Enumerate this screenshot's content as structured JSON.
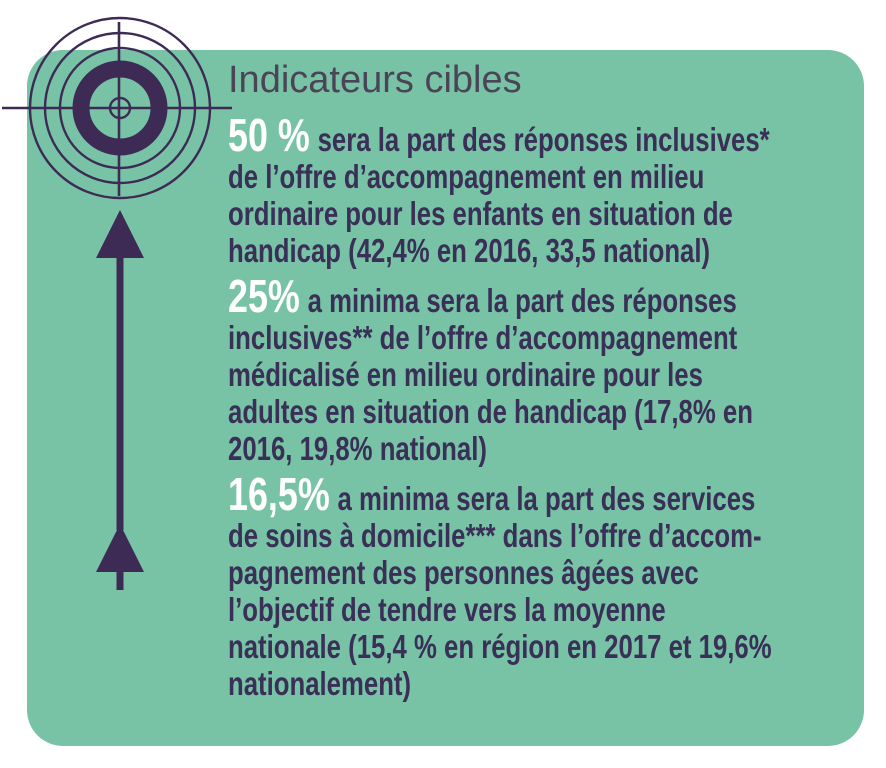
{
  "panel": {
    "title": "Indicateurs cibles",
    "indicators": [
      {
        "value": "50 %",
        "lines": [
          "sera la part des réponses inclusives*",
          "de l’offre d’accompagnement en milieu",
          "ordinaire pour les enfants en situation de",
          "handicap (42,4% en 2016, 33,5 national)"
        ]
      },
      {
        "value": "25%",
        "lines": [
          "a minima sera la part des réponses",
          "inclusives** de l’offre d’accompagnement",
          "médicalisé en milieu ordinaire pour les",
          "adultes en situation de handicap (17,8% en",
          "2016, 19,8% national)"
        ]
      },
      {
        "value": "16,5%",
        "lines": [
          "a minima sera la part des services",
          "de soins à domicile*** dans l’offre d’accom-",
          "pagnement des personnes âgées avec",
          "l’objectif de tendre vers la moyenne",
          "nationale (15,4 % en région en 2017 et 19,6%",
          "nationalement)"
        ]
      }
    ]
  },
  "icons": {
    "target": "target-icon",
    "arrow": "up-arrow-icon"
  },
  "colors": {
    "background": "#ffffff",
    "panel_bg": "#78c3a6",
    "accent": "#3d2b56",
    "text": "#392f57",
    "title": "#4b4457",
    "value": "#ffffff"
  }
}
